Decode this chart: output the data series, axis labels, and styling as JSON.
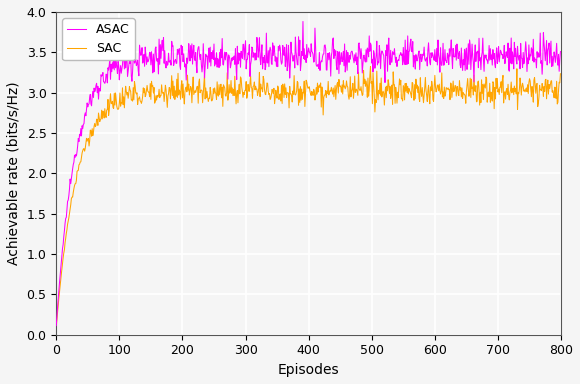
{
  "title": "",
  "xlabel": "Episodes",
  "ylabel": "Achievable rate (bits/s/Hz)",
  "xlim": [
    0,
    800
  ],
  "ylim": [
    0.0,
    4.0
  ],
  "yticks": [
    0.0,
    0.5,
    1.0,
    1.5,
    2.0,
    2.5,
    3.0,
    3.5,
    4.0
  ],
  "xticks": [
    0,
    100,
    200,
    300,
    400,
    500,
    600,
    700,
    800
  ],
  "asac_color": "#FF00FF",
  "sac_color": "#FFA500",
  "asac_label": "ASAC",
  "sac_label": "SAC",
  "n_episodes": 800,
  "asac_steady_mean": 3.45,
  "asac_steady_std": 0.11,
  "sac_steady_mean": 3.03,
  "sac_steady_std": 0.09,
  "background_color": "#f5f5f5",
  "grid_color": "white",
  "linewidth": 0.75,
  "legend_fontsize": 9,
  "axis_fontsize": 10,
  "tick_fontsize": 9
}
